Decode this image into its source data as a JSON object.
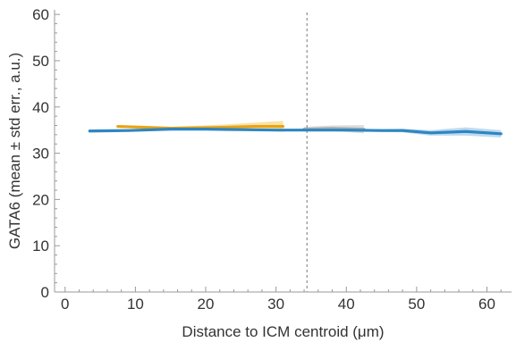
{
  "chart_data": {
    "type": "line",
    "xlabel": "Distance to ICM centroid (μm)",
    "ylabel": "GATA6 (mean ± std err., a.u.)",
    "xlim": [
      -1.5,
      63.5
    ],
    "ylim": [
      0,
      61
    ],
    "xticks": [
      0,
      10,
      20,
      30,
      40,
      50,
      60
    ],
    "yticks": [
      0,
      10,
      20,
      30,
      40,
      50,
      60
    ],
    "reference_line_x": 34.4,
    "series": [
      {
        "color": "#e8a317",
        "band_color": "#f5d98a",
        "x": [
          7.5,
          15,
          22.5,
          27,
          31
        ],
        "y": [
          35.8,
          35.4,
          35.6,
          35.8,
          35.8
        ],
        "err": [
          0.3,
          0.3,
          0.6,
          0.8,
          1.2
        ]
      },
      {
        "color": "#b0b0b0",
        "band_color": "#d3d3d3",
        "x": [
          34,
          38,
          42.5
        ],
        "y": [
          35.2,
          35.4,
          35.2
        ],
        "err": [
          0.5,
          0.6,
          0.9
        ]
      },
      {
        "color": "#2e86c1",
        "band_color": "#a9cdeb",
        "x": [
          3.5,
          9,
          15,
          20,
          25,
          30,
          35,
          40,
          45,
          48,
          52,
          57,
          62
        ],
        "y": [
          34.8,
          34.9,
          35.2,
          35.2,
          35.1,
          35.0,
          35.0,
          35.0,
          34.9,
          34.9,
          34.4,
          34.7,
          34.2
        ],
        "err": [
          0.3,
          0.2,
          0.2,
          0.2,
          0.2,
          0.2,
          0.2,
          0.3,
          0.3,
          0.4,
          0.6,
          0.9,
          0.8
        ]
      }
    ]
  }
}
